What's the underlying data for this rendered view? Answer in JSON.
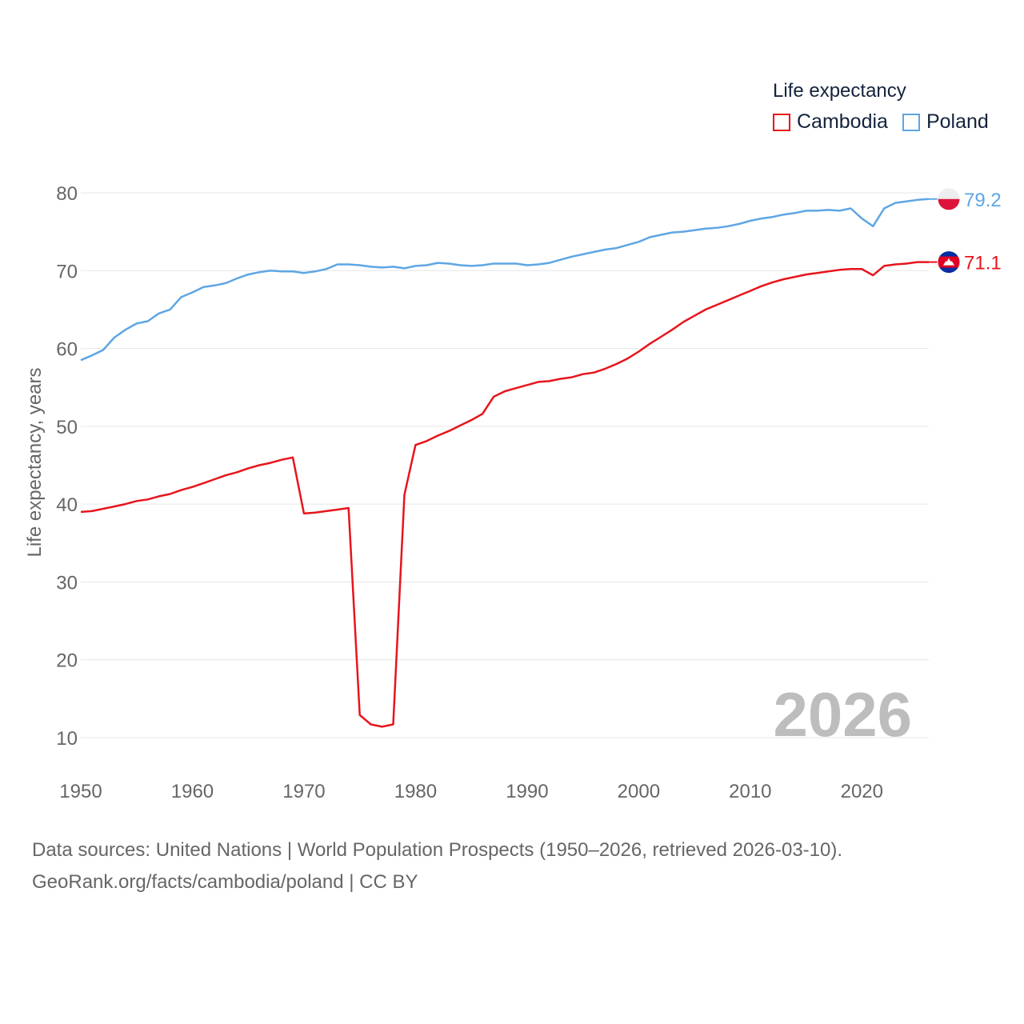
{
  "legend": {
    "title": "Life expectancy",
    "items": [
      {
        "label": "Cambodia",
        "color": "#e8141c"
      },
      {
        "label": "Poland",
        "color": "#5ea6e4"
      }
    ]
  },
  "year_label": "2026",
  "sources": {
    "line1": "Data sources: United Nations | World Population Prospects (1950–2026, retrieved 2026-03-10).",
    "line2": "GeoRank.org/facts/cambodia/poland | CC BY"
  },
  "chart_data": {
    "type": "line",
    "title": "Life expectancy",
    "xlabel": "",
    "ylabel": "Life expectancy, years",
    "xlim": [
      1950,
      2026
    ],
    "ylim": [
      9,
      82
    ],
    "xticks": [
      1950,
      1960,
      1970,
      1980,
      1990,
      2000,
      2010,
      2020
    ],
    "yticks": [
      10,
      20,
      30,
      40,
      50,
      60,
      70,
      80
    ],
    "grid": true,
    "legend_position": "top-right",
    "x": [
      1950,
      1951,
      1952,
      1953,
      1954,
      1955,
      1956,
      1957,
      1958,
      1959,
      1960,
      1961,
      1962,
      1963,
      1964,
      1965,
      1966,
      1967,
      1968,
      1969,
      1970,
      1971,
      1972,
      1973,
      1974,
      1975,
      1976,
      1977,
      1978,
      1979,
      1980,
      1981,
      1982,
      1983,
      1984,
      1985,
      1986,
      1987,
      1988,
      1989,
      1990,
      1991,
      1992,
      1993,
      1994,
      1995,
      1996,
      1997,
      1998,
      1999,
      2000,
      2001,
      2002,
      2003,
      2004,
      2005,
      2006,
      2007,
      2008,
      2009,
      2010,
      2011,
      2012,
      2013,
      2014,
      2015,
      2016,
      2017,
      2018,
      2019,
      2020,
      2021,
      2022,
      2023,
      2024,
      2025,
      2026
    ],
    "series": [
      {
        "name": "Cambodia",
        "color": "#e8141c",
        "end_label": "71.1",
        "values": [
          39.0,
          39.1,
          39.4,
          39.7,
          40.0,
          40.4,
          40.6,
          41.0,
          41.3,
          41.8,
          42.2,
          42.7,
          43.2,
          43.7,
          44.1,
          44.6,
          45.0,
          45.3,
          45.7,
          46.0,
          38.8,
          38.9,
          39.1,
          39.3,
          39.5,
          12.9,
          11.7,
          11.4,
          11.7,
          41.2,
          47.6,
          48.1,
          48.8,
          49.4,
          50.1,
          50.8,
          51.6,
          53.8,
          54.5,
          54.9,
          55.3,
          55.7,
          55.8,
          56.1,
          56.3,
          56.7,
          56.9,
          57.4,
          58.0,
          58.7,
          59.6,
          60.6,
          61.5,
          62.4,
          63.4,
          64.2,
          65.0,
          65.6,
          66.2,
          66.8,
          67.4,
          68.0,
          68.5,
          68.9,
          69.2,
          69.5,
          69.7,
          69.9,
          70.1,
          70.2,
          70.2,
          69.4,
          70.6,
          70.8,
          70.9,
          71.1,
          71.1
        ]
      },
      {
        "name": "Poland",
        "color": "#5ea6e4",
        "end_label": "79.2",
        "values": [
          58.5,
          59.1,
          59.8,
          61.4,
          62.4,
          63.2,
          63.5,
          64.5,
          65.0,
          66.6,
          67.2,
          67.9,
          68.1,
          68.4,
          69.0,
          69.5,
          69.8,
          70.0,
          69.9,
          69.9,
          69.7,
          69.9,
          70.2,
          70.8,
          70.8,
          70.7,
          70.5,
          70.4,
          70.5,
          70.3,
          70.6,
          70.7,
          71.0,
          70.9,
          70.7,
          70.6,
          70.7,
          70.9,
          70.9,
          70.9,
          70.7,
          70.8,
          71.0,
          71.4,
          71.8,
          72.1,
          72.4,
          72.7,
          72.9,
          73.3,
          73.7,
          74.3,
          74.6,
          74.9,
          75.0,
          75.2,
          75.4,
          75.5,
          75.7,
          76.0,
          76.4,
          76.7,
          76.9,
          77.2,
          77.4,
          77.7,
          77.7,
          77.8,
          77.7,
          78.0,
          76.7,
          75.7,
          78.0,
          78.7,
          78.9,
          79.1,
          79.2
        ]
      }
    ]
  }
}
